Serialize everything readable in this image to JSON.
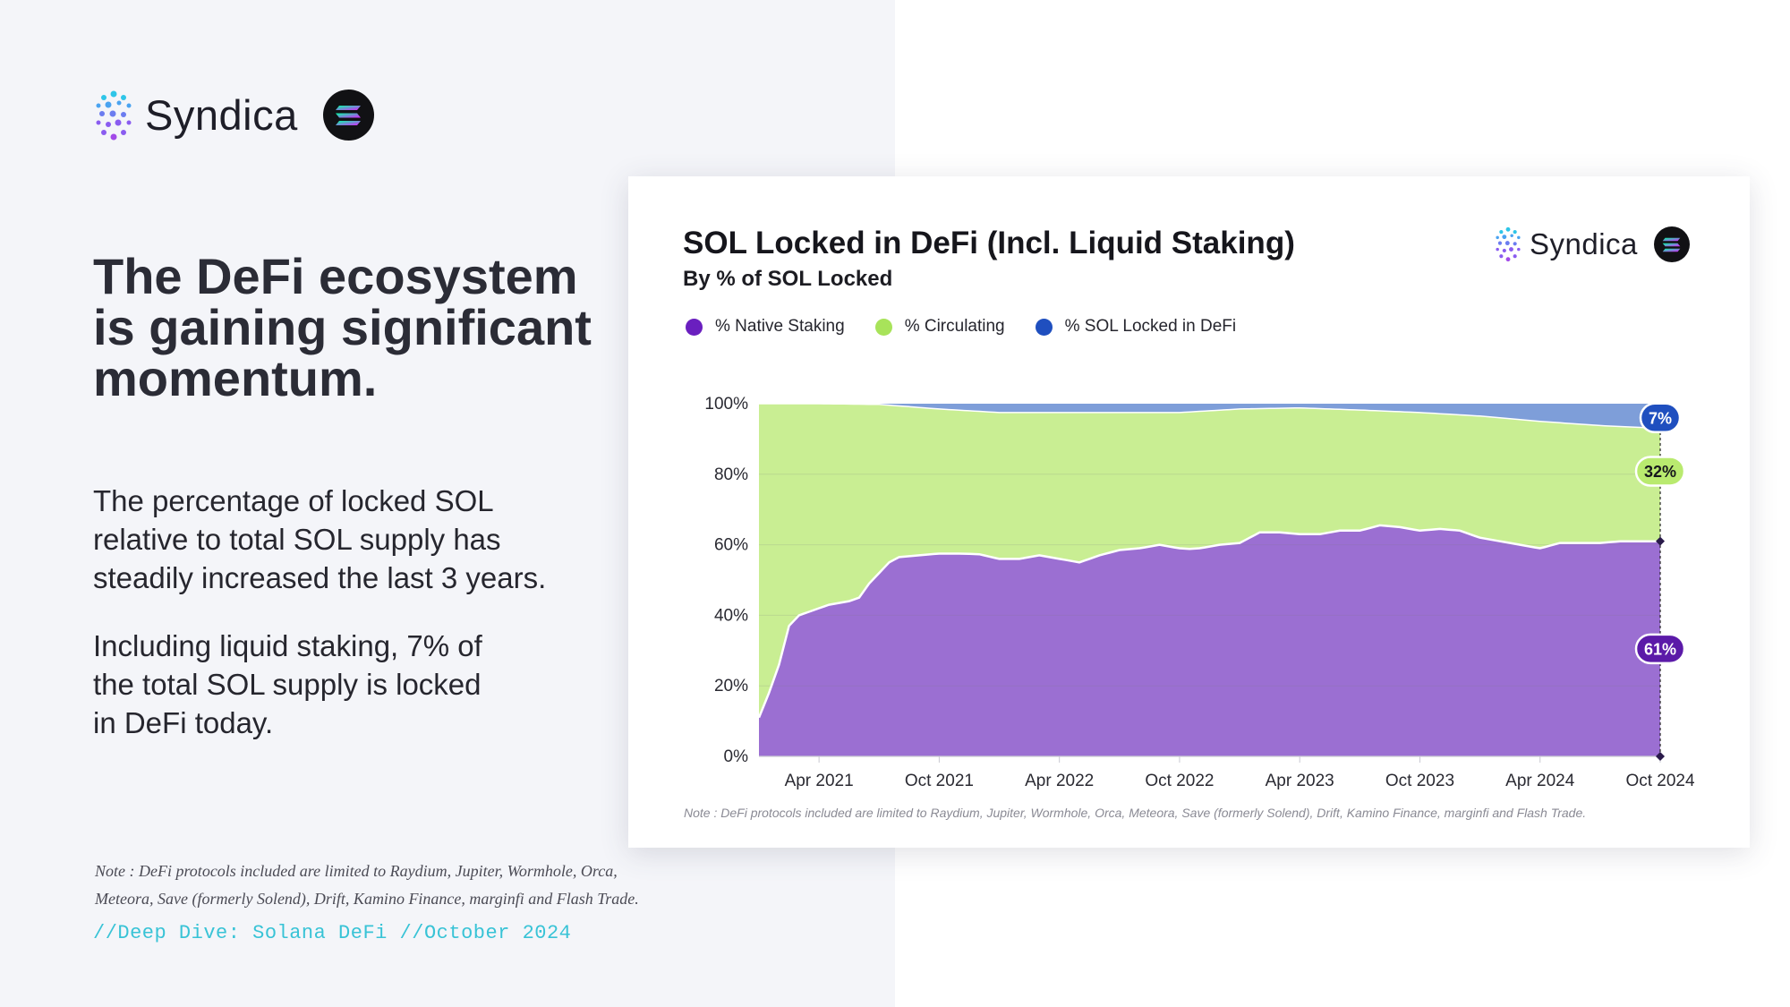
{
  "brand": {
    "name": "Syndica"
  },
  "left": {
    "headline": "The DeFi ecosystem is gaining significant momentum.",
    "paragraph_1": "The percentage of locked SOL relative to total SOL supply has steadily increased the last 3 years.",
    "paragraph_2": "Including liquid staking, 7% of the total SOL supply is locked in DeFi today.",
    "note": "Note : DeFi protocols included are limited to Raydium, Jupiter, Wormhole, Orca, Meteora, Save (formerly Solend), Drift, Kamino Finance, marginfi and Flash Trade.",
    "footer": "//Deep Dive: Solana DeFi //October 2024"
  },
  "card": {
    "note": "Note : DeFi protocols included are limited to Raydium, Jupiter, Wormhole, Orca, Meteora, Save (formerly Solend), Drift, Kamino Finance, marginfi and Flash Trade."
  },
  "colors": {
    "native_staking": "#9b6fd2",
    "native_staking_dot": "#6a1fbf",
    "circulating": "#c9ee93",
    "circulating_dot": "#a8e35a",
    "defi": "#7e9ed9",
    "defi_dot": "#1f4fbf"
  },
  "chart_data": {
    "type": "area",
    "stacked": true,
    "title": "SOL Locked in DeFi (Incl. Liquid Staking)",
    "subtitle": "By % of SOL Locked",
    "ylim": [
      0,
      100
    ],
    "xlim_months": [
      0,
      45
    ],
    "y_ticks": [
      {
        "value": 0,
        "label": "0%"
      },
      {
        "value": 20,
        "label": "20%"
      },
      {
        "value": 40,
        "label": "40%"
      },
      {
        "value": 60,
        "label": "60%"
      },
      {
        "value": 80,
        "label": "80%"
      },
      {
        "value": 100,
        "label": "100%"
      }
    ],
    "x_ticks": [
      {
        "month": 3,
        "label": "Apr 2021"
      },
      {
        "month": 9,
        "label": "Oct 2021"
      },
      {
        "month": 15,
        "label": "Apr 2022"
      },
      {
        "month": 21,
        "label": "Oct 2022"
      },
      {
        "month": 27,
        "label": "Apr 2023"
      },
      {
        "month": 33,
        "label": "Oct 2023"
      },
      {
        "month": 39,
        "label": "Apr 2024"
      },
      {
        "month": 45,
        "label": "Oct 2024"
      }
    ],
    "series": [
      {
        "name": "% Native Staking",
        "color": "#9b6fd2",
        "x": [
          0,
          0.5,
          1,
          1.5,
          2,
          2.5,
          3,
          3.5,
          4,
          4.5,
          5,
          5.5,
          6,
          6.5,
          7,
          8,
          9,
          10,
          11,
          12,
          13,
          14,
          15,
          16,
          17,
          18,
          19,
          20,
          21,
          21.5,
          22,
          23,
          24,
          25,
          26,
          27,
          28,
          29,
          30,
          31,
          32,
          33,
          34,
          35,
          36,
          37,
          38,
          39,
          40,
          41,
          42,
          43,
          44,
          45
        ],
        "values": [
          11,
          18,
          26,
          37,
          40,
          41,
          42,
          43,
          43.5,
          44,
          45,
          49,
          52,
          55,
          56.5,
          57,
          57.5,
          57.5,
          57.3,
          56,
          56,
          57,
          56,
          55,
          57,
          58.5,
          59,
          60,
          59,
          58.8,
          59,
          60,
          60.5,
          63.5,
          63.5,
          63,
          63,
          64,
          64,
          65.5,
          65,
          64,
          64.5,
          64,
          62,
          61,
          60,
          59,
          60.5,
          60.5,
          60.5,
          61,
          61,
          61
        ]
      },
      {
        "name": "% Circulating",
        "color": "#c9ee93",
        "x": [
          0,
          3,
          6,
          9,
          12,
          15,
          18,
          21,
          24,
          27,
          30,
          33,
          36,
          39,
          42,
          45
        ],
        "values": [
          89,
          58,
          48,
          41,
          40.5,
          41.5,
          40.5,
          38,
          38,
          35.8,
          35.2,
          33,
          33.5,
          33.5,
          32.8,
          32
        ]
      },
      {
        "name": "% SOL Locked in DeFi",
        "color": "#7e9ed9",
        "x": [
          0,
          3,
          6,
          9,
          12,
          15,
          18,
          21,
          24,
          27,
          30,
          33,
          36,
          39,
          42,
          45
        ],
        "values": [
          0,
          0,
          0.2,
          1.5,
          2.5,
          2.5,
          2.5,
          2.5,
          1.5,
          1.2,
          1.8,
          2.5,
          3.5,
          5,
          6.2,
          7
        ]
      }
    ],
    "endpoint_labels": [
      {
        "series": "% SOL Locked in DeFi",
        "label": "7%"
      },
      {
        "series": "% Circulating",
        "label": "32%"
      },
      {
        "series": "% Native Staking",
        "label": "61%"
      }
    ]
  }
}
